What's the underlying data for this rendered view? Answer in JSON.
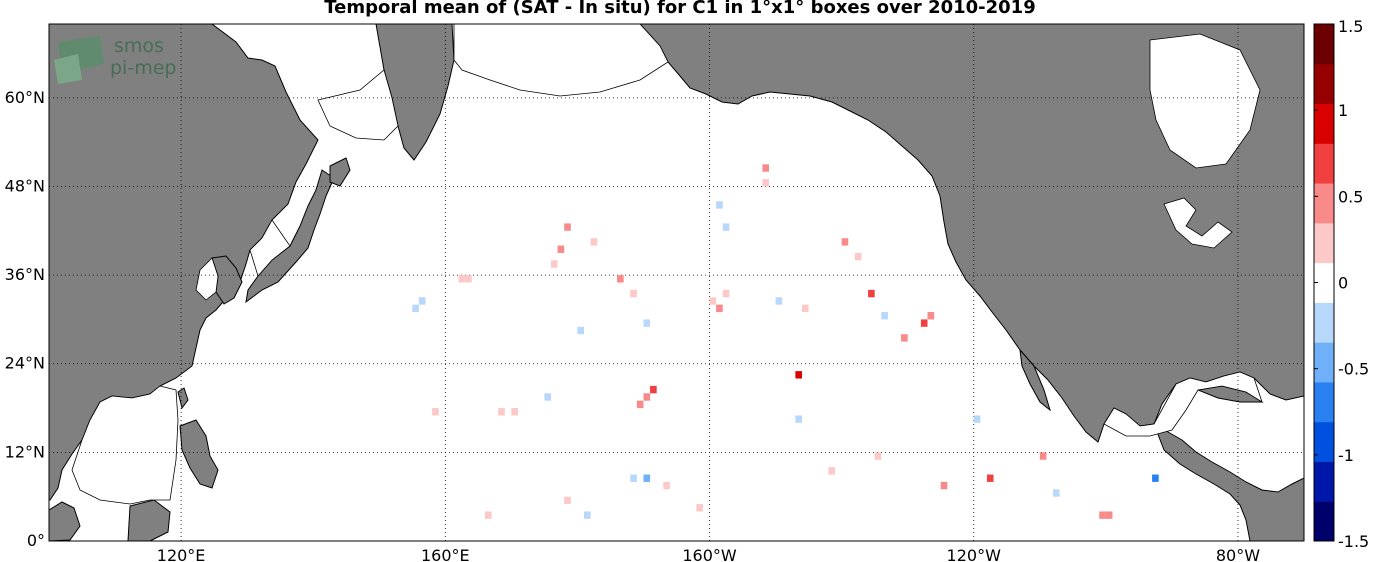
{
  "title": "Temporal mean of (SAT - In situ) for C1 in 1°x1° boxes over 2010-2019",
  "logo": {
    "line1": "smos",
    "line2": "pi-mep"
  },
  "map": {
    "lon_range": [
      100,
      -70
    ],
    "lat_range": [
      0,
      70
    ],
    "lat_ticks": [
      {
        "value": 0,
        "label": "0°"
      },
      {
        "value": 12,
        "label": "12°N"
      },
      {
        "value": 24,
        "label": "24°N"
      },
      {
        "value": 36,
        "label": "36°N"
      },
      {
        "value": 48,
        "label": "48°N"
      },
      {
        "value": 60,
        "label": "60°N"
      }
    ],
    "lon_ticks": [
      {
        "value": 120,
        "label": "120°E"
      },
      {
        "value": 160,
        "label": "160°E"
      },
      {
        "value": -160,
        "label": "160°W"
      },
      {
        "value": -120,
        "label": "120°W"
      },
      {
        "value": -80,
        "label": "80°W"
      }
    ],
    "land_color": "#808080",
    "ocean_color": "#ffffff",
    "grid": "dotted"
  },
  "colorbar": {
    "range": [
      -1.5,
      1.5
    ],
    "ticks": [
      {
        "value": 1.5,
        "label": "1.5"
      },
      {
        "value": 1,
        "label": "1"
      },
      {
        "value": 0.5,
        "label": "0.5"
      },
      {
        "value": 0,
        "label": "0"
      },
      {
        "value": -0.5,
        "label": "-0.5"
      },
      {
        "value": -1,
        "label": "-1"
      },
      {
        "value": -1.5,
        "label": "-1.5"
      }
    ],
    "colormap": [
      "#00006a",
      "#0018a8",
      "#0050e0",
      "#2a80f0",
      "#70b0f8",
      "#b8d8fb",
      "#ffffff",
      "#fcc8c8",
      "#f88a8a",
      "#f04040",
      "#d80000",
      "#960000",
      "#6a0000"
    ],
    "orientation": "vertical"
  },
  "chart_data": {
    "type": "heatmap",
    "title": "Temporal mean of (SAT - In situ) for C1 in 1°x1° boxes over 2010-2019",
    "value_range": [
      -1.5,
      1.5
    ],
    "cells": [
      {
        "lon": 162,
        "lat": 35,
        "value": 0.3
      },
      {
        "lon": 163,
        "lat": 35,
        "value": 0.3
      },
      {
        "lon": 155,
        "lat": 31,
        "value": -0.3
      },
      {
        "lon": 156,
        "lat": 32,
        "value": -0.2
      },
      {
        "lon": 178,
        "lat": 42,
        "value": 0.4
      },
      {
        "lon": 177,
        "lat": 39,
        "value": 0.5
      },
      {
        "lon": 176,
        "lat": 37,
        "value": 0.2
      },
      {
        "lon": 182,
        "lat": 40,
        "value": 0.3
      },
      {
        "lon": 180,
        "lat": 28,
        "value": -0.3
      },
      {
        "lon": 186,
        "lat": 35,
        "value": 0.4
      },
      {
        "lon": 188,
        "lat": 33,
        "value": 0.2
      },
      {
        "lon": 190,
        "lat": 29,
        "value": -0.2
      },
      {
        "lon": 201,
        "lat": 45,
        "value": -0.2
      },
      {
        "lon": 202,
        "lat": 42,
        "value": -0.3
      },
      {
        "lon": 200,
        "lat": 32,
        "value": 0.3
      },
      {
        "lon": 201,
        "lat": 31,
        "value": 0.5
      },
      {
        "lon": 202,
        "lat": 33,
        "value": 0.2
      },
      {
        "lon": 208,
        "lat": 50,
        "value": 0.4
      },
      {
        "lon": 208,
        "lat": 48,
        "value": 0.3
      },
      {
        "lon": 210,
        "lat": 32,
        "value": -0.3
      },
      {
        "lon": 214,
        "lat": 31,
        "value": 0.2
      },
      {
        "lon": 220,
        "lat": 40,
        "value": 0.4
      },
      {
        "lon": 222,
        "lat": 38,
        "value": 0.3
      },
      {
        "lon": 224,
        "lat": 33,
        "value": 0.8
      },
      {
        "lon": 226,
        "lat": 30,
        "value": -0.3
      },
      {
        "lon": 229,
        "lat": 27,
        "value": 0.5
      },
      {
        "lon": 232,
        "lat": 29,
        "value": 0.6
      },
      {
        "lon": 233,
        "lat": 30,
        "value": 0.5
      },
      {
        "lon": 213,
        "lat": 22,
        "value": 1.0
      },
      {
        "lon": 190,
        "lat": 19,
        "value": 0.5
      },
      {
        "lon": 191,
        "lat": 20,
        "value": 0.6
      },
      {
        "lon": 189,
        "lat": 18,
        "value": 0.4
      },
      {
        "lon": 168,
        "lat": 17,
        "value": 0.3
      },
      {
        "lon": 170,
        "lat": 17,
        "value": 0.2
      },
      {
        "lon": 158,
        "lat": 17,
        "value": 0.2
      },
      {
        "lon": 175,
        "lat": 19,
        "value": -0.2
      },
      {
        "lon": 190,
        "lat": 8,
        "value": -0.5
      },
      {
        "lon": 188,
        "lat": 8,
        "value": -0.3
      },
      {
        "lon": 193,
        "lat": 7,
        "value": 0.3
      },
      {
        "lon": 213,
        "lat": 16,
        "value": -0.3
      },
      {
        "lon": 218,
        "lat": 9,
        "value": 0.3
      },
      {
        "lon": 235,
        "lat": 7,
        "value": 0.4
      },
      {
        "lon": 242,
        "lat": 8,
        "value": 0.7
      },
      {
        "lon": 250,
        "lat": 11,
        "value": 0.5
      },
      {
        "lon": 252,
        "lat": 6,
        "value": -0.3
      },
      {
        "lon": 259,
        "lat": 3,
        "value": 0.5
      },
      {
        "lon": 260,
        "lat": 3,
        "value": 0.5
      },
      {
        "lon": 267,
        "lat": 8,
        "value": -0.6
      },
      {
        "lon": 225,
        "lat": 11,
        "value": 0.3
      },
      {
        "lon": 178,
        "lat": 5,
        "value": 0.3
      },
      {
        "lon": 166,
        "lat": 3,
        "value": 0.2
      },
      {
        "lon": 181,
        "lat": 3,
        "value": -0.3
      },
      {
        "lon": 198,
        "lat": 4,
        "value": 0.2
      },
      {
        "lon": 240,
        "lat": 16,
        "value": -0.2
      }
    ]
  }
}
